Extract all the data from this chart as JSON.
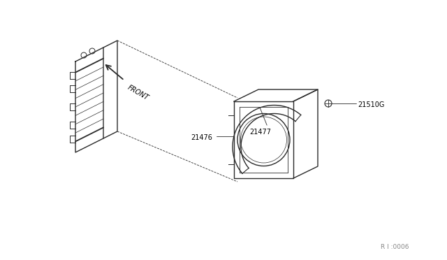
{
  "bg_color": "#ffffff",
  "line_color": "#2a2a2a",
  "label_color": "#000000",
  "fig_width": 6.4,
  "fig_height": 3.72,
  "dpi": 100,
  "watermark": "R I :0006"
}
